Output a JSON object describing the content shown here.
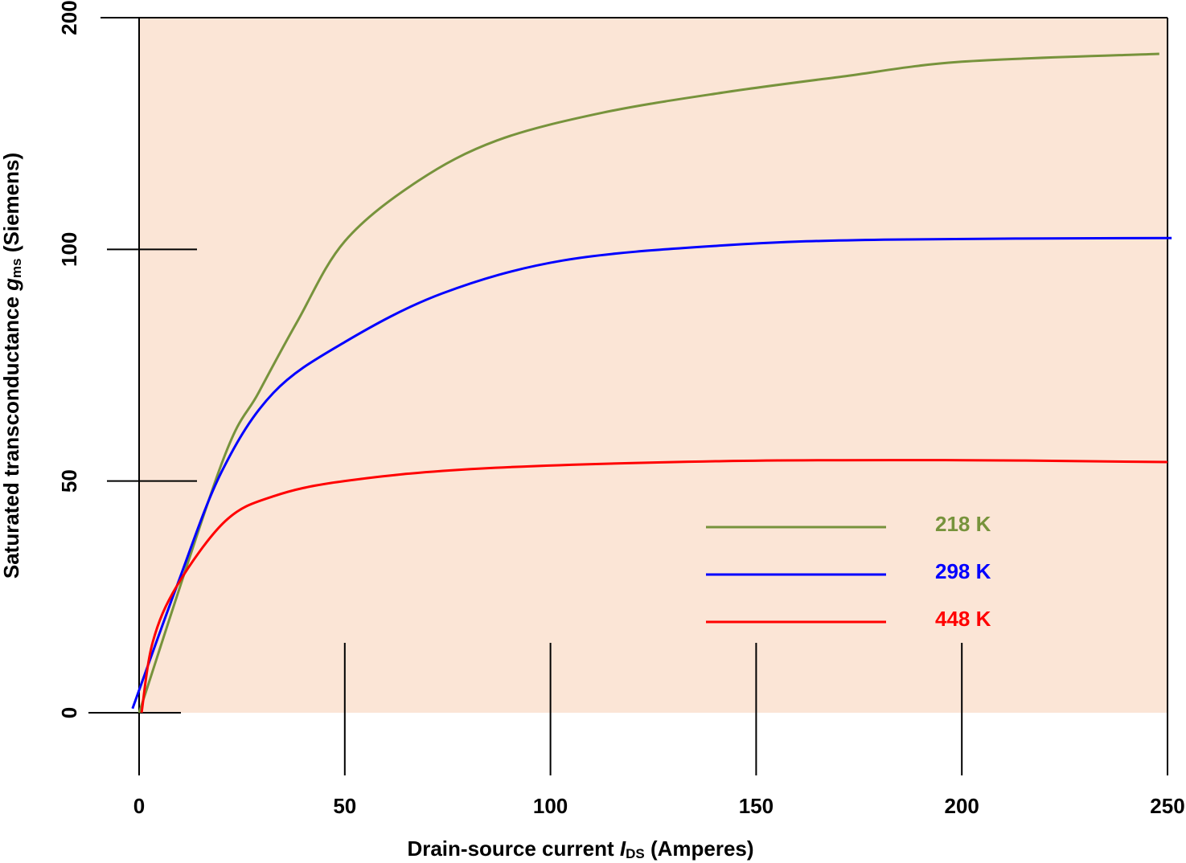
{
  "chart_data": {
    "type": "line",
    "x_label": {
      "before": "Drain-source current ",
      "italic": "I",
      "sub": "DS",
      "after": " (Amperes)"
    },
    "y_label": {
      "before": "Saturated transconductance ",
      "italic": "g",
      "sub": "ms",
      "after": " (Siemens)"
    },
    "xlim": [
      0,
      250
    ],
    "xticks": [
      0,
      50,
      100,
      150,
      200,
      250
    ],
    "ylim": [
      0,
      200
    ],
    "yticks": [
      0,
      50,
      100,
      200
    ],
    "background": "#fbe5d6",
    "legend": "lower-right",
    "series": [
      {
        "name": "218 K",
        "color": "#77933c",
        "x": [
          0,
          20,
          29,
          38.5,
          50,
          67.8,
          87,
          112.7,
          142,
          171,
          200,
          248
        ],
        "values": [
          0,
          53.6,
          69,
          84.5,
          103.5,
          129.5,
          147,
          159,
          167.7,
          174.6,
          181,
          184.4
        ]
      },
      {
        "name": "298 K",
        "color": "#0000ff",
        "x": [
          -1.6,
          9.2,
          20,
          32.6,
          50,
          73.7,
          103,
          142,
          181,
          251
        ],
        "values": [
          0.9,
          27.4,
          51.9,
          69,
          80,
          90.5,
          97.6,
          101.7,
          104.2,
          104.9
        ]
      },
      {
        "name": "448 K",
        "color": "#ff0000",
        "x": [
          0.6,
          3.3,
          9.2,
          21,
          32.6,
          50,
          83,
          142,
          200,
          250
        ],
        "values": [
          0,
          15.2,
          27.4,
          41.4,
          46.7,
          50,
          52.7,
          54.3,
          54.5,
          54.1
        ]
      }
    ]
  }
}
